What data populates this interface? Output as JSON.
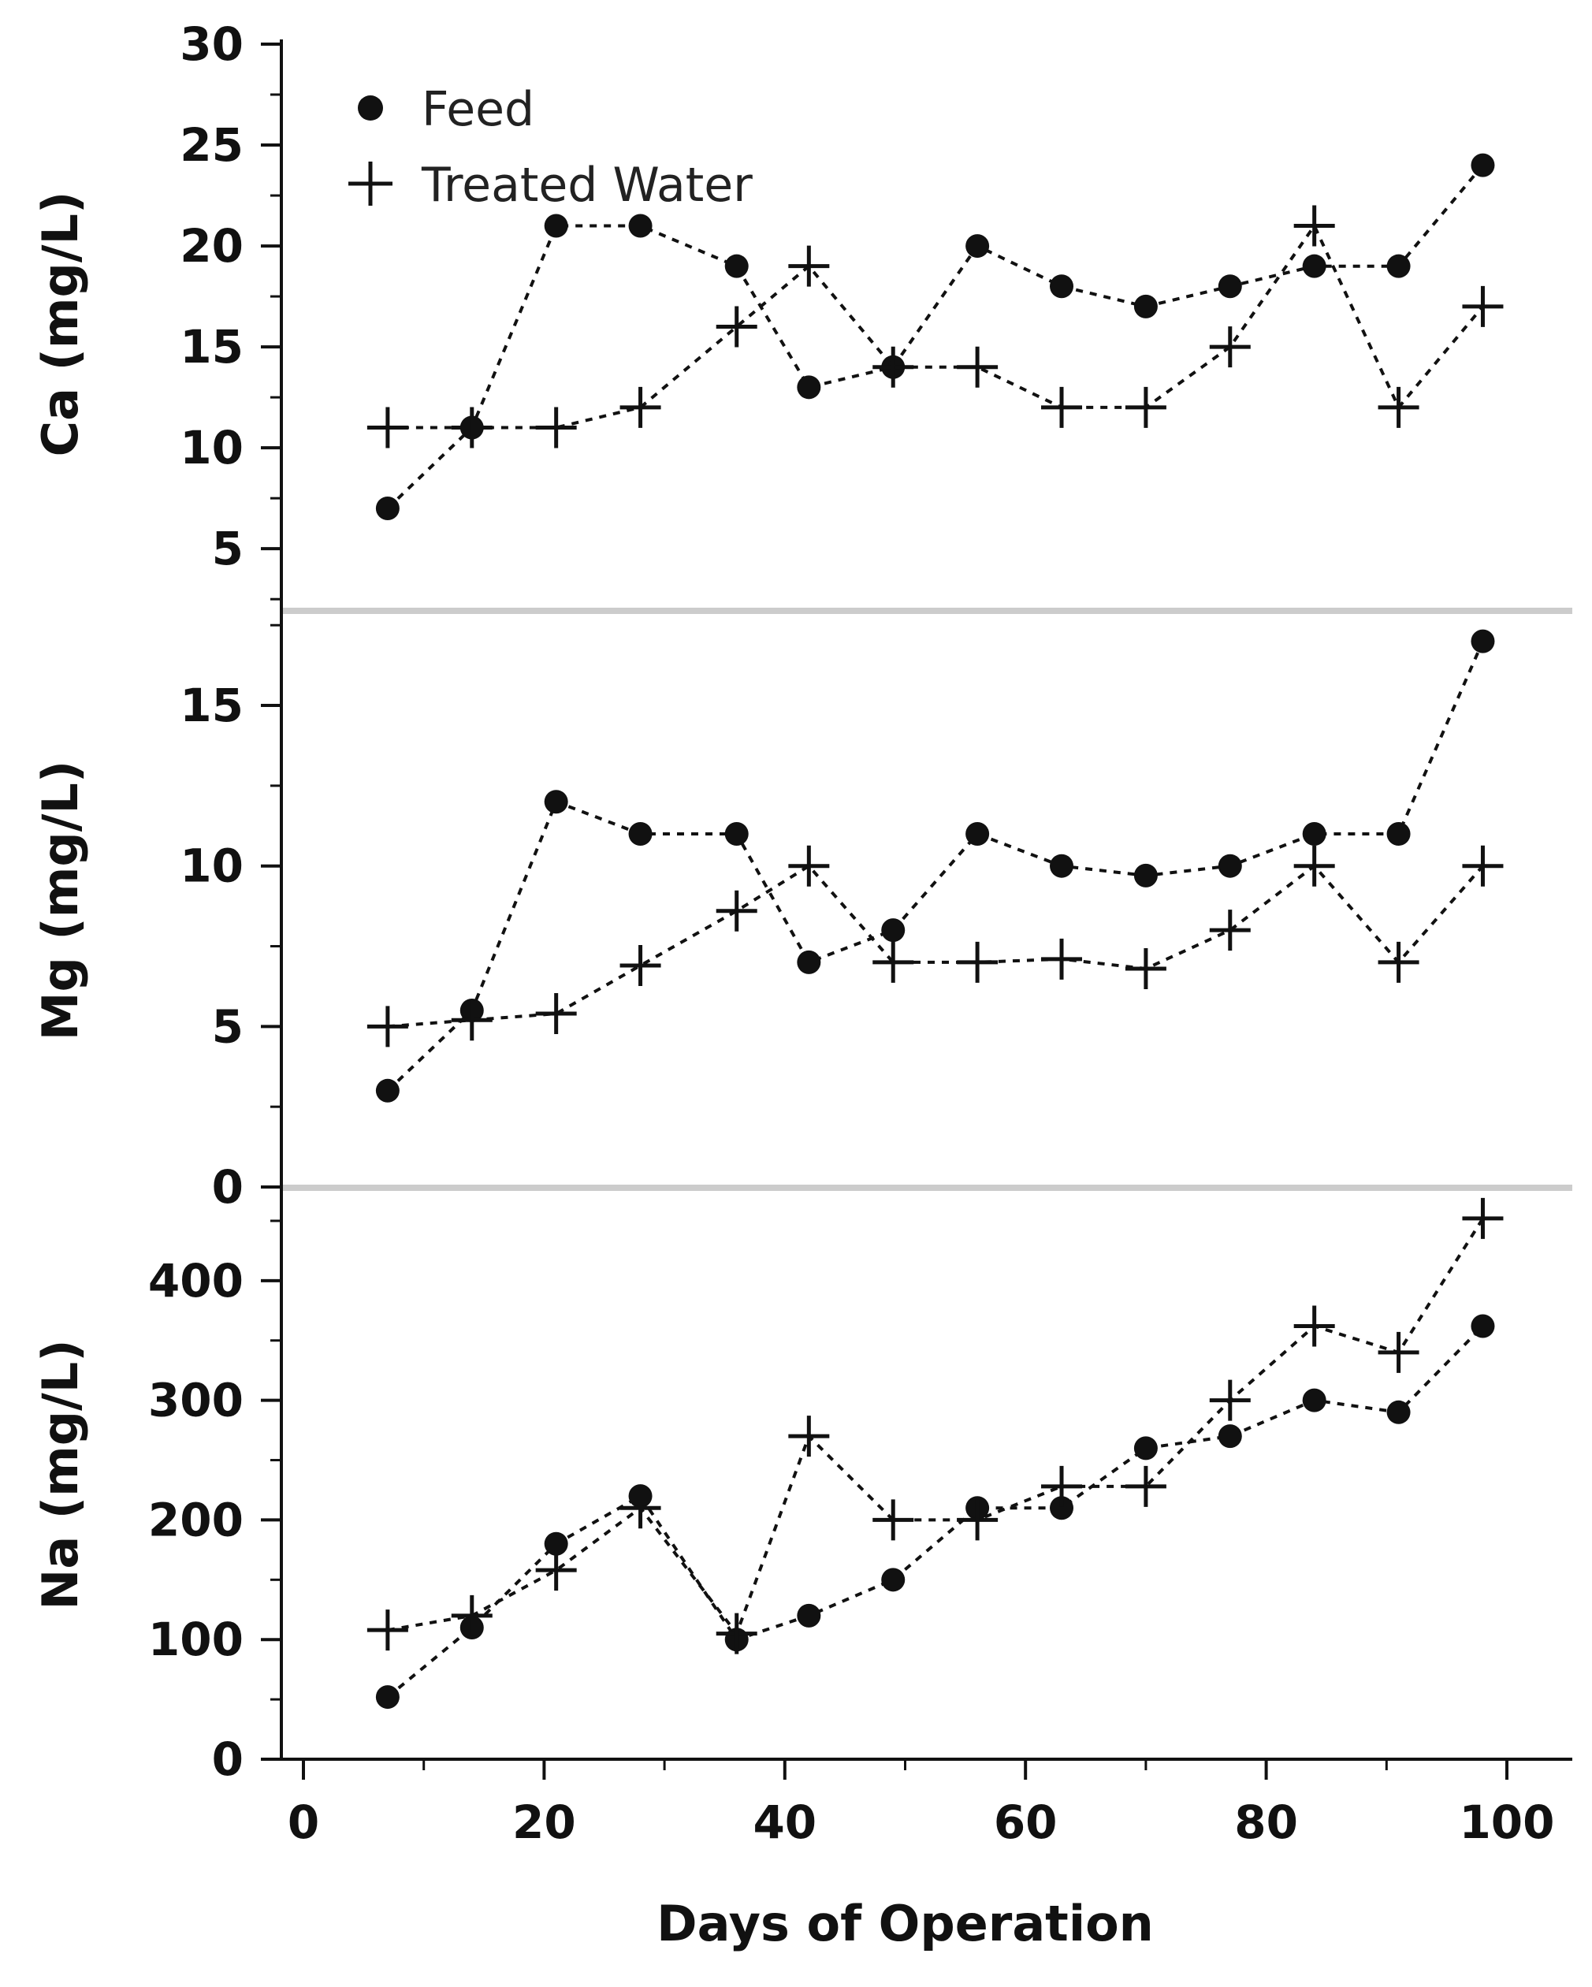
{
  "chart_data": {
    "type": "line",
    "shared_x_axis": {
      "label": "Days of Operation",
      "range": [
        -2,
        105
      ],
      "ticks": [
        0,
        20,
        40,
        60,
        80,
        100
      ]
    },
    "legend": [
      {
        "name": "Feed",
        "marker": "circle"
      },
      {
        "name": "Treated Water",
        "marker": "plus"
      }
    ],
    "legend_position": "top-left",
    "line_style": "dotted",
    "panels": [
      {
        "ylabel": "Ca (mg/L)",
        "ylim": [
          2,
          30
        ],
        "yticks": [
          5,
          10,
          15,
          20,
          25,
          30
        ],
        "series": [
          {
            "name": "Feed",
            "marker": "circle",
            "x": [
              7,
              14,
              21,
              28,
              36,
              42,
              49,
              56,
              63,
              70,
              77,
              84,
              91,
              98
            ],
            "y": [
              7,
              11,
              21,
              21,
              19,
              13,
              14,
              20,
              18,
              17,
              18,
              19,
              19,
              24
            ]
          },
          {
            "name": "Treated Water",
            "marker": "plus",
            "x": [
              7,
              14,
              21,
              28,
              36,
              42,
              49,
              56,
              63,
              70,
              77,
              84,
              91,
              98
            ],
            "y": [
              11,
              11,
              11,
              12,
              16,
              19,
              14,
              14,
              12,
              12,
              15,
              21,
              12,
              17
            ]
          }
        ]
      },
      {
        "ylabel": "Mg (mg/L)",
        "ylim": [
          0,
          17.8
        ],
        "yticks": [
          0,
          5,
          10,
          15
        ],
        "series": [
          {
            "name": "Feed",
            "marker": "circle",
            "x": [
              7,
              14,
              21,
              28,
              36,
              42,
              49,
              56,
              63,
              70,
              77,
              84,
              91,
              98
            ],
            "y": [
              3,
              5.5,
              12,
              11,
              11,
              7,
              8,
              11,
              10,
              9.7,
              10,
              11,
              11,
              17
            ]
          },
          {
            "name": "Treated Water",
            "marker": "plus",
            "x": [
              7,
              14,
              21,
              28,
              36,
              42,
              49,
              56,
              63,
              70,
              77,
              84,
              91,
              98
            ],
            "y": [
              5,
              5.2,
              5.4,
              6.9,
              8.6,
              10,
              7,
              7,
              7.1,
              6.8,
              8,
              10,
              7,
              10
            ]
          }
        ]
      },
      {
        "ylabel": "Na (mg/L)",
        "ylim": [
          0,
          475
        ],
        "yticks": [
          0,
          100,
          200,
          300,
          400
        ],
        "series": [
          {
            "name": "Feed",
            "marker": "circle",
            "x": [
              7,
              14,
              21,
              28,
              36,
              42,
              49,
              56,
              63,
              70,
              77,
              84,
              91,
              98
            ],
            "y": [
              52,
              110,
              180,
              220,
              100,
              120,
              150,
              210,
              210,
              260,
              270,
              300,
              290,
              362
            ]
          },
          {
            "name": "Treated Water",
            "marker": "plus",
            "x": [
              7,
              14,
              21,
              28,
              36,
              42,
              49,
              56,
              63,
              70,
              77,
              84,
              91,
              98
            ],
            "y": [
              108,
              120,
              158,
              210,
              105,
              270,
              200,
              200,
              228,
              228,
              300,
              362,
              340,
              452
            ]
          }
        ]
      }
    ]
  }
}
